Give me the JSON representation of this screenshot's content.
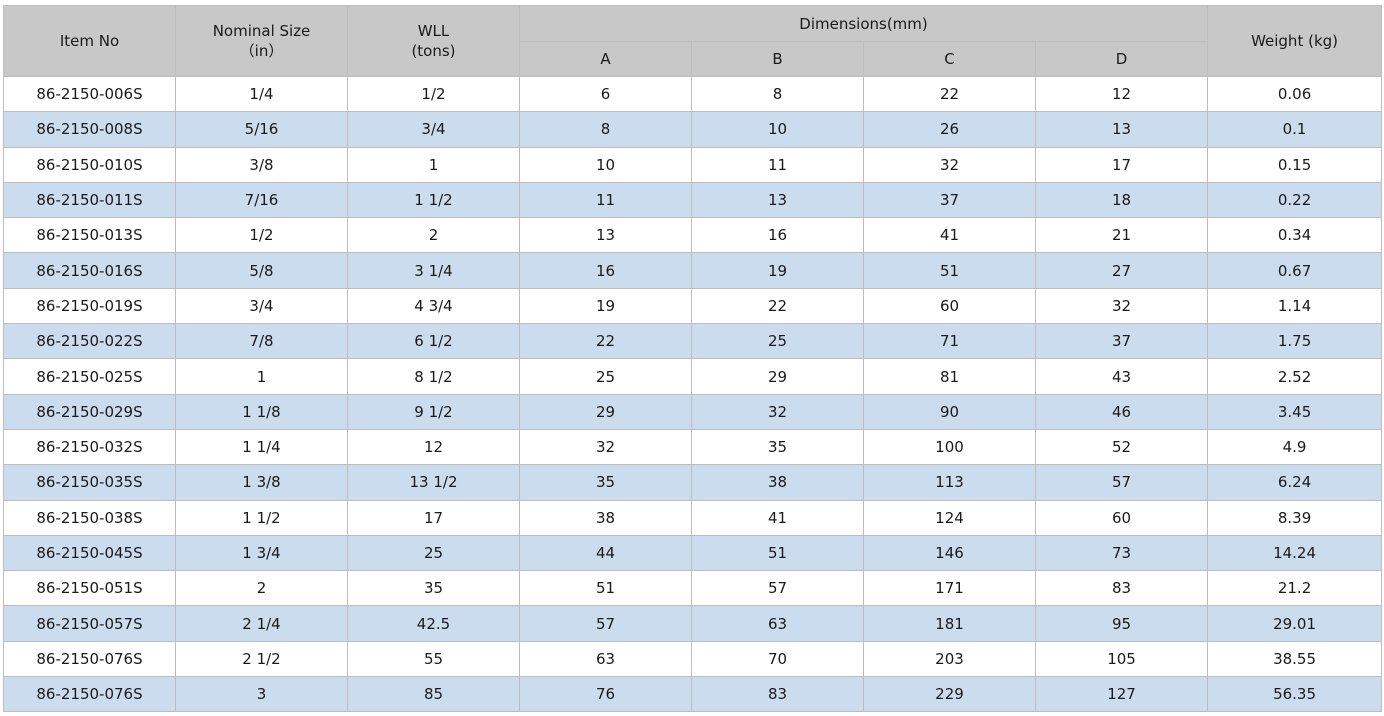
{
  "headers": {
    "item_no": "Item No",
    "nominal_size": "Nominal Size",
    "nominal_size_unit": "（in）",
    "wll": "WLL",
    "wll_unit": "(tons)",
    "dimensions": "Dimensions(mm)",
    "dim_a": "A",
    "dim_b": "B",
    "dim_c": "C",
    "dim_d": "D",
    "weight": "Weight (kg)"
  },
  "rows": [
    [
      "86-2150-006S",
      "1/4",
      "1/2",
      "6",
      "8",
      "22",
      "12",
      "0.06"
    ],
    [
      "86-2150-008S",
      "5/16",
      "3/4",
      "8",
      "10",
      "26",
      "13",
      "0.1"
    ],
    [
      "86-2150-010S",
      "3/8",
      "1",
      "10",
      "11",
      "32",
      "17",
      "0.15"
    ],
    [
      "86-2150-011S",
      "7/16",
      "1 1/2",
      "11",
      "13",
      "37",
      "18",
      "0.22"
    ],
    [
      "86-2150-013S",
      "1/2",
      "2",
      "13",
      "16",
      "41",
      "21",
      "0.34"
    ],
    [
      "86-2150-016S",
      "5/8",
      "3 1/4",
      "16",
      "19",
      "51",
      "27",
      "0.67"
    ],
    [
      "86-2150-019S",
      "3/4",
      "4 3/4",
      "19",
      "22",
      "60",
      "32",
      "1.14"
    ],
    [
      "86-2150-022S",
      "7/8",
      "6 1/2",
      "22",
      "25",
      "71",
      "37",
      "1.75"
    ],
    [
      "86-2150-025S",
      "1",
      "8 1/2",
      "25",
      "29",
      "81",
      "43",
      "2.52"
    ],
    [
      "86-2150-029S",
      "1 1/8",
      "9 1/2",
      "29",
      "32",
      "90",
      "46",
      "3.45"
    ],
    [
      "86-2150-032S",
      "1 1/4",
      "12",
      "32",
      "35",
      "100",
      "52",
      "4.9"
    ],
    [
      "86-2150-035S",
      "1 3/8",
      "13 1/2",
      "35",
      "38",
      "113",
      "57",
      "6.24"
    ],
    [
      "86-2150-038S",
      "1 1/2",
      "17",
      "38",
      "41",
      "124",
      "60",
      "8.39"
    ],
    [
      "86-2150-045S",
      "1 3/4",
      "25",
      "44",
      "51",
      "146",
      "73",
      "14.24"
    ],
    [
      "86-2150-051S",
      "2",
      "35",
      "51",
      "57",
      "171",
      "83",
      "21.2"
    ],
    [
      "86-2150-057S",
      "2 1/4",
      "42.5",
      "57",
      "63",
      "181",
      "95",
      "29.01"
    ],
    [
      "86-2150-076S",
      "2 1/2",
      "55",
      "63",
      "70",
      "203",
      "105",
      "38.55"
    ],
    [
      "86-2150-076S",
      "3",
      "85",
      "76",
      "83",
      "229",
      "127",
      "56.35"
    ]
  ]
}
